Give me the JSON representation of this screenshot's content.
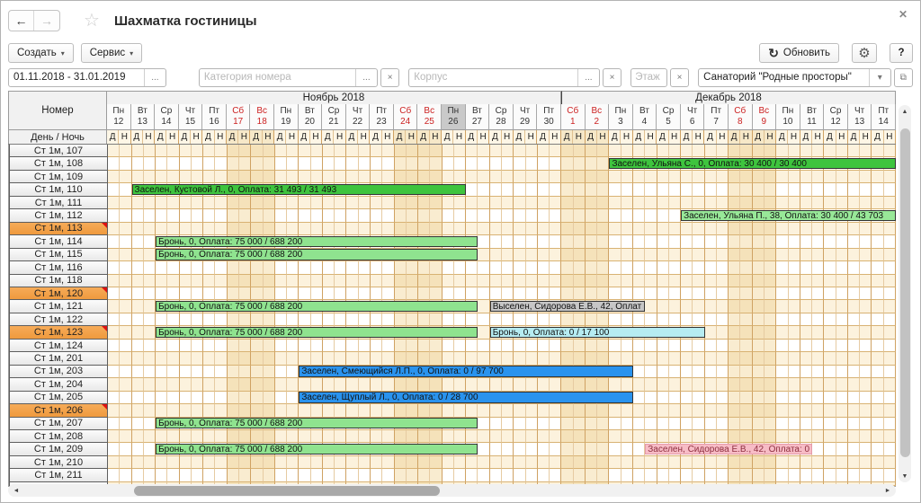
{
  "window": {
    "title": "Шахматка гостиницы"
  },
  "icons": {
    "back": "←",
    "forward": "→",
    "star": "☆",
    "close": "✕",
    "refresh": "↻",
    "gear": "⚙",
    "dropdown": "▾",
    "more": "...",
    "clear": "×",
    "open_form": "⧉",
    "scroll_up": "▲",
    "scroll_down": "▼",
    "scroll_left": "◄",
    "scroll_right": "►"
  },
  "toolbar": {
    "create_label": "Создать",
    "service_label": "Сервис",
    "refresh_label": "Обновить",
    "help_label": "?"
  },
  "filters": {
    "period": {
      "value": "01.11.2018 - 31.01.2019"
    },
    "category": {
      "placeholder": "Категория номера"
    },
    "building": {
      "placeholder": "Корпус"
    },
    "floor": {
      "placeholder": "Этаж"
    },
    "sanatorium": {
      "value": "Санаторий \"Родные просторы\""
    }
  },
  "grid": {
    "corner_label": "Номер",
    "day_night_label": "День / Ночь",
    "day_label": "Д",
    "night_label": "Н",
    "months": [
      {
        "label": "Ноябрь 2018",
        "days": 19
      },
      {
        "label": "Декабрь 2018",
        "days": 14
      }
    ],
    "days": [
      {
        "w": "Пн",
        "d": "12"
      },
      {
        "w": "Вт",
        "d": "13"
      },
      {
        "w": "Ср",
        "d": "14"
      },
      {
        "w": "Чт",
        "d": "15"
      },
      {
        "w": "Пт",
        "d": "16"
      },
      {
        "w": "Сб",
        "d": "17",
        "we": true
      },
      {
        "w": "Вс",
        "d": "18",
        "we": true
      },
      {
        "w": "Пн",
        "d": "19"
      },
      {
        "w": "Вт",
        "d": "20"
      },
      {
        "w": "Ср",
        "d": "21"
      },
      {
        "w": "Чт",
        "d": "22"
      },
      {
        "w": "Пт",
        "d": "23"
      },
      {
        "w": "Сб",
        "d": "24",
        "we": true
      },
      {
        "w": "Вс",
        "d": "25",
        "we": true
      },
      {
        "w": "Пн",
        "d": "26",
        "today": true
      },
      {
        "w": "Вт",
        "d": "27"
      },
      {
        "w": "Ср",
        "d": "28"
      },
      {
        "w": "Чт",
        "d": "29"
      },
      {
        "w": "Пт",
        "d": "30"
      },
      {
        "w": "Сб",
        "d": "1",
        "we": true
      },
      {
        "w": "Вс",
        "d": "2",
        "we": true
      },
      {
        "w": "Пн",
        "d": "3"
      },
      {
        "w": "Вт",
        "d": "4"
      },
      {
        "w": "Ср",
        "d": "5"
      },
      {
        "w": "Чт",
        "d": "6"
      },
      {
        "w": "Пт",
        "d": "7"
      },
      {
        "w": "Сб",
        "d": "8",
        "we": true
      },
      {
        "w": "Вс",
        "d": "9",
        "we": true
      },
      {
        "w": "Пн",
        "d": "10"
      },
      {
        "w": "Вт",
        "d": "11"
      },
      {
        "w": "Ср",
        "d": "12"
      },
      {
        "w": "Чт",
        "d": "13"
      },
      {
        "w": "Пт",
        "d": "14"
      }
    ],
    "rooms": [
      {
        "name": "Ст 1м, 107"
      },
      {
        "name": "Ст 1м, 108",
        "bars": [
          {
            "text": "Заселен, Ульяна С., 0, Оплата: 30 400 / 30 400",
            "type": "checkedin",
            "start": 42,
            "end": 66
          }
        ]
      },
      {
        "name": "Ст 1м, 109"
      },
      {
        "name": "Ст 1м, 110",
        "bars": [
          {
            "text": "Заселен, Кустовой Л., 0, Оплата: 31 493 / 31 493",
            "type": "checkedin",
            "start": 2,
            "end": 30
          }
        ]
      },
      {
        "name": "Ст 1м, 111"
      },
      {
        "name": "Ст 1м, 112",
        "bars": [
          {
            "text": "Заселен, Ульяна П., 38, Оплата: 30 400 / 43 703",
            "type": "checkedin_light",
            "start": 48,
            "end": 66
          }
        ]
      },
      {
        "name": "Ст 1м, 113",
        "flag": true
      },
      {
        "name": "Ст 1м, 114",
        "bars": [
          {
            "text": "Бронь, 0, Оплата: 75 000 / 688 200",
            "type": "booking",
            "start": 4,
            "end": 31
          }
        ]
      },
      {
        "name": "Ст 1м, 115",
        "bars": [
          {
            "text": "Бронь, 0, Оплата: 75 000 / 688 200",
            "type": "booking",
            "start": 4,
            "end": 31
          }
        ]
      },
      {
        "name": "Ст 1м, 116"
      },
      {
        "name": "Ст 1м, 118"
      },
      {
        "name": "Ст 1м, 120",
        "flag": true
      },
      {
        "name": "Ст 1м, 121",
        "bars": [
          {
            "text": "Бронь, 0, Оплата: 75 000 / 688 200",
            "type": "booking",
            "start": 4,
            "end": 31
          },
          {
            "text": "Выселен, Сидорова Е.В., 42, Оплат",
            "type": "checkedout",
            "start": 32,
            "end": 45
          }
        ]
      },
      {
        "name": "Ст 1м, 122"
      },
      {
        "name": "Ст 1м, 123",
        "flag": true,
        "bars": [
          {
            "text": "Бронь, 0, Оплата: 75 000 / 688 200",
            "type": "booking",
            "start": 4,
            "end": 31
          },
          {
            "text": "Бронь, 0, Оплата: 0 / 17 100",
            "type": "booking_cyan",
            "start": 32,
            "end": 50
          }
        ]
      },
      {
        "name": "Ст 1м, 124"
      },
      {
        "name": "Ст 1м, 201"
      },
      {
        "name": "Ст 1м, 203",
        "bars": [
          {
            "text": "Заселен, Смеющийся Л.П., 0, Оплата: 0 / 97 700",
            "type": "checkedin_blue",
            "start": 16,
            "end": 44
          }
        ]
      },
      {
        "name": "Ст 1м, 204"
      },
      {
        "name": "Ст 1м, 205",
        "bars": [
          {
            "text": "Заселен, Щуплый Л., 0, Оплата: 0 / 28 700",
            "type": "checkedin_blue",
            "start": 16,
            "end": 44
          }
        ]
      },
      {
        "name": "Ст 1м, 206",
        "flag": true
      },
      {
        "name": "Ст 1м, 207",
        "bars": [
          {
            "text": "Бронь, 0, Оплата: 75 000 / 688 200",
            "type": "booking",
            "start": 4,
            "end": 31
          }
        ]
      },
      {
        "name": "Ст 1м, 208"
      },
      {
        "name": "Ст 1м, 209",
        "bars": [
          {
            "text": "Бронь, 0, Оплата: 75 000 / 688 200",
            "type": "booking",
            "start": 4,
            "end": 31
          },
          {
            "text": "Заселен, Сидорова Е.В., 42, Оплата: 0",
            "type": "checkedin_pink",
            "start": 45,
            "end": 59
          }
        ]
      },
      {
        "name": "Ст 1м, 210"
      },
      {
        "name": "Ст 1м, 211"
      }
    ]
  },
  "colors": {
    "checkedin": "#3ec43e",
    "checkedin_light": "#98e898",
    "booking": "#8fe38f",
    "checkedout": "#c6c6c6",
    "booking_cyan": "#b6ecf2",
    "checkedin_blue": "#2a93ee",
    "checkedin_pink": "#f7bcc6",
    "checkedin_pink_text": "#8e2f3f",
    "flag_row": "#f2a14c",
    "weekend_text": "#cc2222"
  }
}
